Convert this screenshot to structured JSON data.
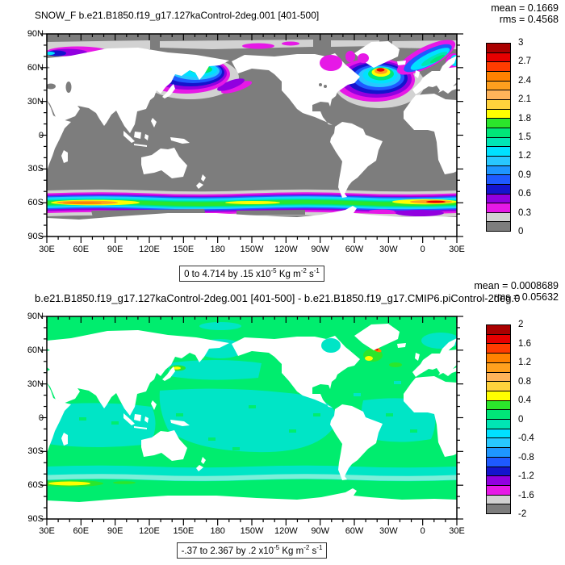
{
  "figure": {
    "panels": [
      {
        "title": "SNOW_F b.e21.B1850.f19_g17.127kaControl-2deg.001 [401-500]",
        "mean_label": "mean = 0.1669",
        "rms_label": "rms = 0.4568",
        "range_label": {
          "p1": "0 to 4.714 by .15 x10",
          "s1": "-5",
          "p2": " Kg m",
          "s2": "-2",
          "p3": " s",
          "s3": "-1"
        },
        "colorbar_labels": [
          "3",
          "2.7",
          "2.4",
          "2.1",
          "1.8",
          "1.5",
          "1.2",
          "0.9",
          "0.6",
          "0.3",
          "0"
        ]
      },
      {
        "title": "b.e21.B1850.f19_g17.127kaControl-2deg.001 [401-500] - b.e21.B1850.f19_g17.CMIP6.piControl-2deg.0",
        "mean_label": "mean = 0.0008689",
        "rms_label": "rms = 0.05632",
        "range_label": {
          "p1": "-.37 to 2.367 by .2 x10",
          "s1": "-5",
          "p2": " Kg m",
          "s2": "-2",
          "p3": " s",
          "s3": "-1"
        },
        "colorbar_labels": [
          "2",
          "1.6",
          "1.2",
          "0.8",
          "0.4",
          "0",
          "-0.4",
          "-0.8",
          "-1.2",
          "-1.6",
          "-2"
        ]
      }
    ],
    "axes": {
      "lon_labels": [
        "30E",
        "60E",
        "90E",
        "120E",
        "150E",
        "180",
        "150W",
        "120W",
        "90W",
        "60W",
        "30W",
        "0",
        "30E"
      ],
      "lat_labels": [
        "90N",
        "60N",
        "30N",
        "0",
        "30S",
        "60S",
        "90S"
      ]
    }
  },
  "chart_data": [
    {
      "type": "heatmap",
      "subtype": "global filled-contour map, equirectangular, longitude 30E east around to 30E, latitude 90N-90S",
      "variable": "SNOW_F",
      "title": "SNOW_F b.e21.B1850.f19_g17.127kaControl-2deg.001 [401-500]",
      "stats": {
        "mean": 0.1669,
        "rms": 0.4568
      },
      "field_min": 0,
      "field_max": 4.714,
      "contour_interval": 0.15,
      "units": "x10-5 Kg m-2 s-1",
      "colorbar": {
        "min": 0,
        "max": 3,
        "cell_step": 0.15,
        "tick_step": 0.3,
        "tick_labels_top_to_bottom": [
          "3",
          "2.7",
          "2.4",
          "2.1",
          "1.8",
          "1.5",
          "1.2",
          "0.9",
          "0.6",
          "0.3",
          "0"
        ],
        "colors_top_to_bottom": [
          "#AA0000",
          "#E60000",
          "#FF3C00",
          "#FF8200",
          "#FFA01E",
          "#FFB45A",
          "#FFD23C",
          "#FFFF00",
          "#2BE62B",
          "#00E678",
          "#00E6B4",
          "#00E1FF",
          "#28C8FF",
          "#1E96FF",
          "#1E5AFF",
          "#1414CD",
          "#9100E0",
          "#E619E6",
          "#D2D2D2",
          "#7D7D7D"
        ]
      },
      "x_tick_labels": [
        "30E",
        "60E",
        "90E",
        "120E",
        "150E",
        "180",
        "150W",
        "120W",
        "90W",
        "60W",
        "30W",
        "0",
        "30E"
      ],
      "y_tick_labels": [
        "90N",
        "60N",
        "30N",
        "0",
        "30S",
        "60S",
        "90S"
      ],
      "regions": [
        "land masked white; open ocean mostly 0-0.15 (gray)",
        "Arctic ocean 0.15-0.45 (light gray with magenta patches)",
        "Barents/Kara seas patch 0.3-0.9 (magenta-purple-blue)",
        "North Pacific / Sea of Okhotsk / Bering maximum ~1.2-1.8 (cyan-green core ringed by blue/purple/magenta)",
        "North Atlantic / Labrador-Irminger maximum up to ~3 (red core south of Greenland ringed yellow-green-cyan-blue-magenta), cyan band extending to Norwegian Sea",
        "circumpolar Southern Ocean storm-track band 50S-68S, values 0.3->2.5+, orange/red maxima near 30-90E and 30W-20E, yellow-green core elsewhere"
      ]
    },
    {
      "type": "heatmap",
      "subtype": "global filled-contour difference map, equirectangular, longitude 30E east around to 30E, latitude 90N-90S",
      "variable": "SNOW_F difference (127kaControl minus piControl)",
      "title": "b.e21.B1850.f19_g17.127kaControl-2deg.001 [401-500] - b.e21.B1850.f19_g17.CMIP6.piControl-2deg.0",
      "stats": {
        "mean": 0.0008689,
        "rms": 0.05632
      },
      "field_min": -0.37,
      "field_max": 2.367,
      "contour_interval": 0.2,
      "units": "x10-5 Kg m-2 s-1",
      "colorbar": {
        "min": -2,
        "max": 2,
        "cell_step": 0.2,
        "tick_step": 0.4,
        "tick_labels_top_to_bottom": [
          "2",
          "1.6",
          "1.2",
          "0.8",
          "0.4",
          "0",
          "-0.4",
          "-0.8",
          "-1.2",
          "-1.6",
          "-2"
        ],
        "colors_top_to_bottom": [
          "#AA0000",
          "#E60000",
          "#FF3C00",
          "#FF8200",
          "#FFA01E",
          "#FFB45A",
          "#FFD23C",
          "#FFFF00",
          "#2BE62B",
          "#00E678",
          "#00E6B4",
          "#00E1FF",
          "#28C8FF",
          "#1E96FF",
          "#1E5AFF",
          "#1414CD",
          "#9100E0",
          "#E619E6",
          "#D2D2D2",
          "#7D7D7D"
        ]
      },
      "x_tick_labels": [
        "30E",
        "60E",
        "90E",
        "120E",
        "150E",
        "180",
        "150W",
        "120W",
        "90W",
        "60W",
        "30W",
        "0",
        "30E"
      ],
      "y_tick_labels": [
        "90N",
        "60N",
        "30N",
        "0",
        "30S",
        "60S",
        "90S"
      ],
      "regions": [
        "land masked white",
        "northern oceans mostly 0 to +0.2 (spring green)",
        "tropical/subtropical oceans mostly -0.2 to 0 (turquoise)",
        "pale cyan band -0.4 to -0.2 near 55S",
        "yellow streak +0.4-0.6 near 30-60E around 62S",
        "small +0.4-0.6 yellow spot east of Japan",
        "local maximum >1.6 (red/orange arc) at southeast Greenland coast with yellow/green halo"
      ]
    }
  ]
}
